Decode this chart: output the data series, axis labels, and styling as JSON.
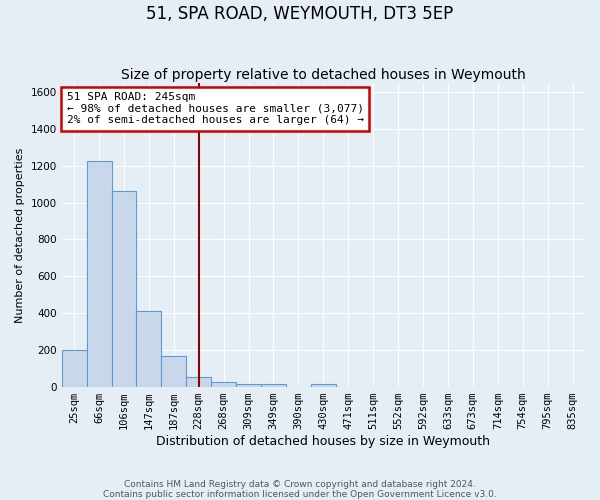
{
  "title": "51, SPA ROAD, WEYMOUTH, DT3 5EP",
  "subtitle": "Size of property relative to detached houses in Weymouth",
  "xlabel": "Distribution of detached houses by size in Weymouth",
  "ylabel": "Number of detached properties",
  "bin_labels": [
    "25sqm",
    "66sqm",
    "106sqm",
    "147sqm",
    "187sqm",
    "228sqm",
    "268sqm",
    "309sqm",
    "349sqm",
    "390sqm",
    "430sqm",
    "471sqm",
    "511sqm",
    "552sqm",
    "592sqm",
    "633sqm",
    "673sqm",
    "714sqm",
    "754sqm",
    "795sqm",
    "835sqm"
  ],
  "bar_heights": [
    200,
    1225,
    1065,
    410,
    165,
    50,
    25,
    15,
    15,
    0,
    15,
    0,
    0,
    0,
    0,
    0,
    0,
    0,
    0,
    0,
    0
  ],
  "bar_color": "#c8d8ea",
  "bar_edge_color": "#5b9bd5",
  "ylim": [
    0,
    1650
  ],
  "yticks": [
    0,
    200,
    400,
    600,
    800,
    1000,
    1200,
    1400,
    1600
  ],
  "annotation_text": "51 SPA ROAD: 245sqm\n← 98% of detached houses are smaller (3,077)\n2% of semi-detached houses are larger (64) →",
  "annotation_box_facecolor": "#ffffff",
  "annotation_box_edgecolor": "#cc0000",
  "vline_color": "#880000",
  "background_color": "#e6eef5",
  "grid_color": "#ffffff",
  "footer_text": "Contains HM Land Registry data © Crown copyright and database right 2024.\nContains public sector information licensed under the Open Government Licence v3.0.",
  "title_fontsize": 12,
  "subtitle_fontsize": 10,
  "ylabel_fontsize": 8,
  "xlabel_fontsize": 9,
  "tick_fontsize": 7.5,
  "annot_fontsize": 8,
  "footer_fontsize": 6.5,
  "vline_x": 5.0
}
